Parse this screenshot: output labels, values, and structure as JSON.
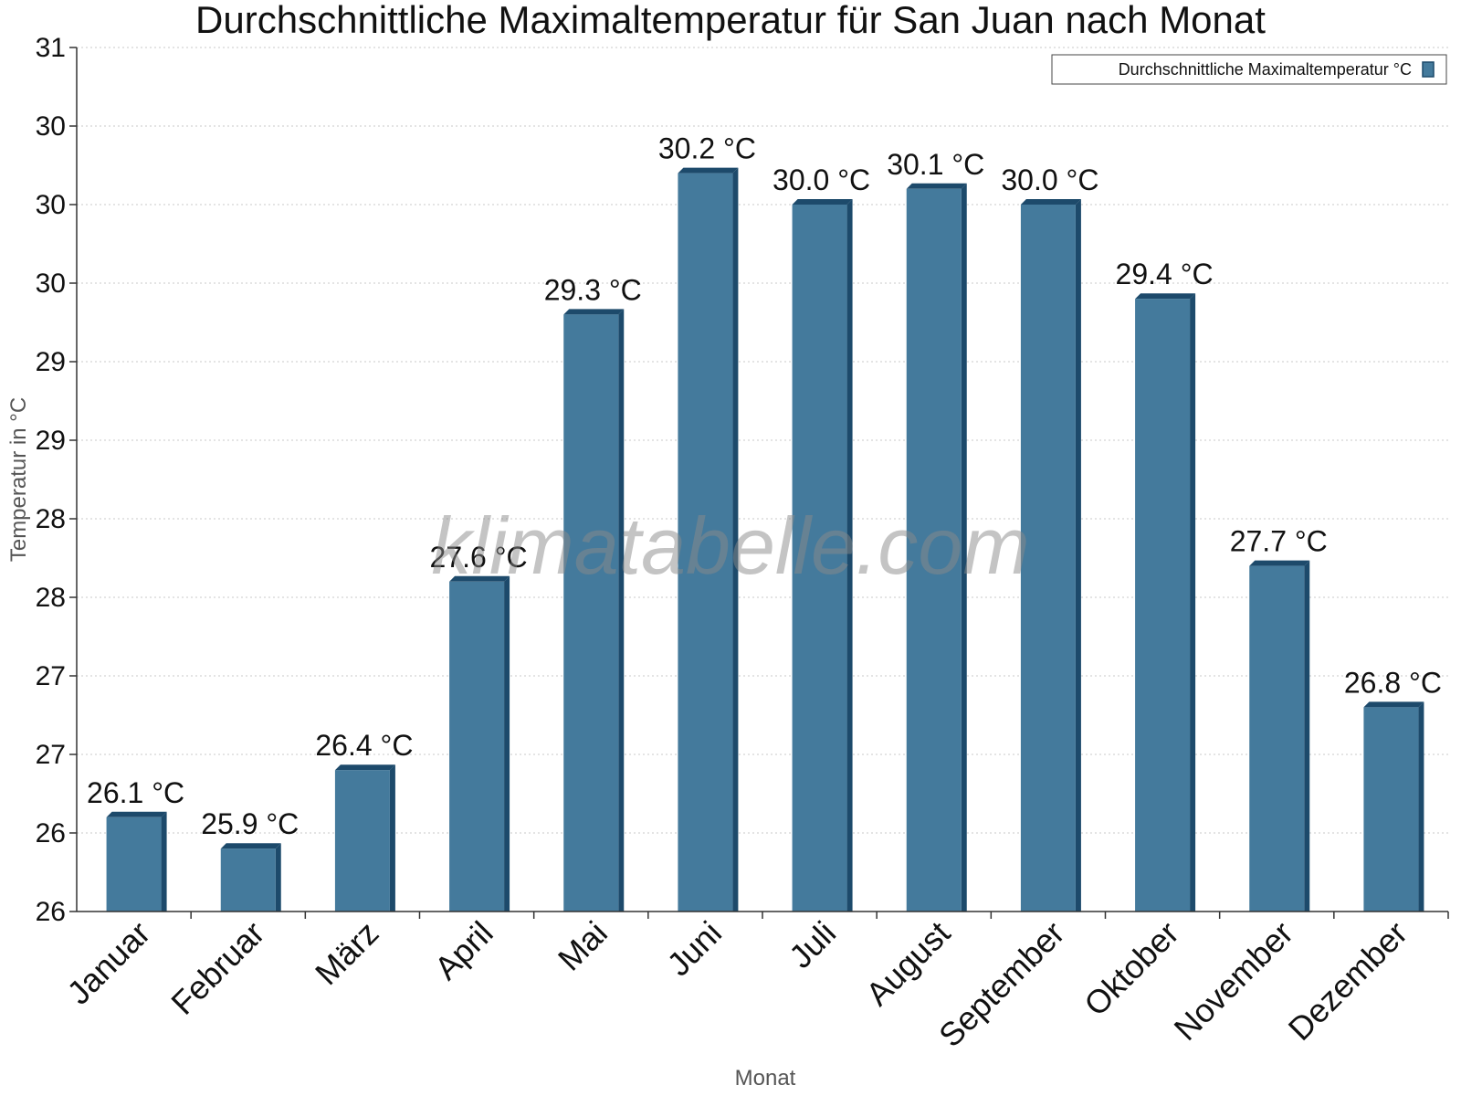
{
  "chart_data": {
    "type": "bar",
    "title": "Durchschnittliche Maximaltemperatur für San Juan nach Monat",
    "xlabel": "Monat",
    "ylabel": "Temperatur in °C",
    "watermark": "klimatabelle.com",
    "categories": [
      "Januar",
      "Februar",
      "März",
      "April",
      "Mai",
      "Juni",
      "Juli",
      "August",
      "September",
      "Oktober",
      "November",
      "Dezember"
    ],
    "series": [
      {
        "name": "Durchschnittliche Maximaltemperatur °C",
        "values": [
          26.1,
          25.9,
          26.4,
          27.6,
          29.3,
          30.2,
          30.0,
          30.1,
          30.0,
          29.4,
          27.7,
          26.8
        ],
        "labels": [
          "26.1 °C",
          "25.9 °C",
          "26.4 °C",
          "27.6 °C",
          "29.3 °C",
          "30.2 °C",
          "30.0 °C",
          "30.1 °C",
          "30.0 °C",
          "29.4 °C",
          "27.7 °C",
          "26.8 °C"
        ],
        "color": "#447a9c",
        "side_color": "#1d4a6b"
      }
    ],
    "ylim": [
      25.5,
      31.0
    ],
    "yticks": [
      25.5,
      26.0,
      26.5,
      27.0,
      27.5,
      28.0,
      28.5,
      29.0,
      29.5,
      30.0,
      30.5,
      31.0
    ],
    "ytick_labels": [
      "26",
      "26",
      "27",
      "27",
      "28",
      "28",
      "29",
      "29",
      "30",
      "30",
      "30",
      "31"
    ],
    "grid": true,
    "legend_position": "top-right"
  }
}
